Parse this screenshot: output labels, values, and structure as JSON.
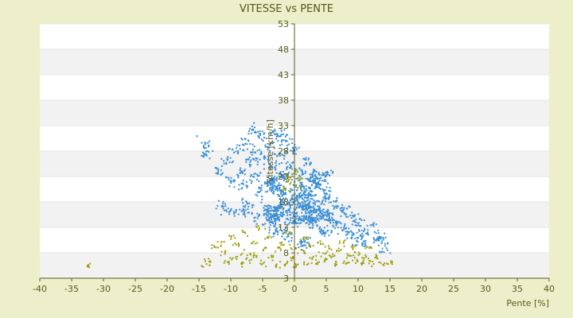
{
  "chart_data": {
    "type": "scatter",
    "title": "VITESSE vs PENTE",
    "xlabel": "Pente [%]",
    "ylabel": "Vitesse [km/h]",
    "xlim": [
      -40,
      40
    ],
    "ylim": [
      3,
      53
    ],
    "xticks": [
      "-40",
      "-35",
      "-30",
      "-25",
      "-20",
      "-15",
      "-10",
      "-5",
      "0",
      "5",
      "10",
      "15",
      "20",
      "25",
      "30",
      "35",
      "40"
    ],
    "yticks": [
      "3",
      "8",
      "13",
      "18",
      "23",
      "28",
      "33",
      "38",
      "43",
      "48",
      "53"
    ],
    "grid": "horizontal banded",
    "legend": "none",
    "colors": {
      "background": "#ecefc9",
      "plot_band_light": "#ffffff",
      "plot_band_dark": "#f2f2f2",
      "axis": "#5a5a1e",
      "series_blue": "#3a8ed6",
      "series_olive": "#a0a010",
      "text": "#555522"
    },
    "series": [
      {
        "color": "#3a8ed6",
        "description_points": [
          [
            -14,
            29.5
          ],
          [
            -13.8,
            27.5
          ],
          [
            -12,
            24
          ],
          [
            -10.5,
            26
          ],
          [
            -10,
            22
          ],
          [
            -9,
            28
          ],
          [
            -8.5,
            24
          ],
          [
            -8,
            21
          ],
          [
            -7.5,
            30
          ],
          [
            -7,
            26
          ],
          [
            -7,
            18
          ],
          [
            -6.5,
            32.3
          ],
          [
            -6,
            28
          ],
          [
            -6,
            23
          ],
          [
            -5.5,
            20
          ],
          [
            -5,
            31
          ],
          [
            -5,
            26
          ],
          [
            -4.5,
            22
          ],
          [
            -4,
            29
          ],
          [
            -4,
            17
          ],
          [
            -3.5,
            25
          ],
          [
            -3,
            31.5
          ],
          [
            -3,
            21
          ],
          [
            -2.5,
            27
          ],
          [
            -2,
            18
          ],
          [
            -2,
            31
          ],
          [
            -1.5,
            23
          ],
          [
            -1,
            29
          ],
          [
            -1,
            16
          ],
          [
            -0.5,
            25
          ],
          [
            0,
            28
          ],
          [
            0,
            20
          ],
          [
            0.5,
            22
          ],
          [
            1,
            24
          ],
          [
            1,
            17
          ],
          [
            1.5,
            21
          ],
          [
            2,
            26
          ],
          [
            2,
            15
          ],
          [
            2.5,
            19
          ],
          [
            3,
            23
          ],
          [
            3,
            14
          ],
          [
            3.5,
            18
          ],
          [
            4,
            22
          ],
          [
            4,
            13
          ],
          [
            4.5,
            16
          ],
          [
            5,
            20
          ],
          [
            5,
            12
          ],
          [
            5.5,
            15
          ],
          [
            6,
            18
          ],
          [
            6.5,
            14
          ],
          [
            7,
            17
          ],
          [
            7.5,
            13
          ],
          [
            8,
            16
          ],
          [
            8.5,
            12
          ],
          [
            9,
            15
          ],
          [
            9.5,
            11
          ],
          [
            10,
            14
          ],
          [
            10.5,
            12
          ],
          [
            11,
            10
          ],
          [
            12,
            13
          ],
          [
            13,
            11
          ],
          [
            13.5,
            10.5
          ],
          [
            14,
            9
          ],
          [
            -3,
            12
          ],
          [
            -1,
            11
          ],
          [
            1,
            10
          ],
          [
            2,
            9.5
          ],
          [
            -2,
            13
          ],
          [
            0,
            14
          ],
          [
            -4,
            14
          ],
          [
            -6,
            15
          ],
          [
            -8,
            16
          ],
          [
            -10,
            16
          ],
          [
            -11,
            17
          ]
        ]
      },
      {
        "color": "#a0a010",
        "description_points": [
          [
            -32.5,
            5.5
          ],
          [
            -14,
            5.8
          ],
          [
            -13.5,
            6.5
          ],
          [
            -12.5,
            9
          ],
          [
            -11.5,
            10
          ],
          [
            -11,
            8
          ],
          [
            -10.5,
            6
          ],
          [
            -10,
            11
          ],
          [
            -9.5,
            7
          ],
          [
            -9,
            9.5
          ],
          [
            -8.5,
            5.8
          ],
          [
            -8,
            12
          ],
          [
            -7.5,
            8
          ],
          [
            -7,
            6.5
          ],
          [
            -6.5,
            10
          ],
          [
            -6,
            7.5
          ],
          [
            -5.5,
            13
          ],
          [
            -5,
            6
          ],
          [
            -4.5,
            9
          ],
          [
            -4,
            11
          ],
          [
            -3.5,
            7
          ],
          [
            -3,
            5.5
          ],
          [
            -2.5,
            8.5
          ],
          [
            -2,
            10
          ],
          [
            -1.5,
            6
          ],
          [
            -1,
            12
          ],
          [
            -0.5,
            7
          ],
          [
            0,
            9
          ],
          [
            0.5,
            5.5
          ],
          [
            1,
            8
          ],
          [
            1.5,
            11
          ],
          [
            2,
            6
          ],
          [
            2.5,
            9.5
          ],
          [
            3,
            7
          ],
          [
            3.5,
            5.8
          ],
          [
            4,
            10
          ],
          [
            4.5,
            8
          ],
          [
            5,
            6.5
          ],
          [
            5.5,
            9
          ],
          [
            6,
            7.5
          ],
          [
            6.5,
            5.8
          ],
          [
            7,
            8.5
          ],
          [
            7.5,
            10
          ],
          [
            8,
            6
          ],
          [
            8.5,
            7.5
          ],
          [
            9,
            9
          ],
          [
            9.5,
            6.5
          ],
          [
            10,
            8
          ],
          [
            10.5,
            5.8
          ],
          [
            11,
            7
          ],
          [
            11.5,
            9
          ],
          [
            12,
            6
          ],
          [
            13,
            7
          ],
          [
            14,
            5.8
          ],
          [
            15,
            6.2
          ],
          [
            -1,
            22
          ],
          [
            0,
            24
          ],
          [
            -0.5,
            23
          ],
          [
            0.5,
            21
          ],
          [
            -1.5,
            20.5
          ],
          [
            1,
            22.5
          ]
        ]
      }
    ]
  }
}
